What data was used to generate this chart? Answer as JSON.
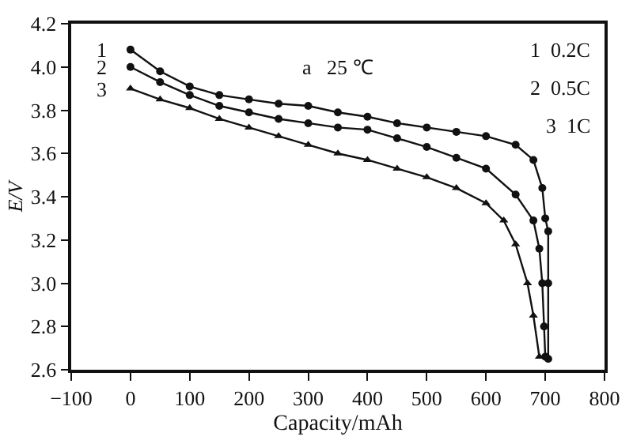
{
  "chart_data": {
    "type": "line",
    "xlabel": "Capacity/mAh",
    "ylabel": "E/V",
    "xlim": [
      -100,
      800
    ],
    "xticks": [
      -100,
      0,
      100,
      200,
      300,
      400,
      500,
      600,
      700,
      800
    ],
    "ylim": [
      2.6,
      4.2
    ],
    "yticks": [
      2.6,
      2.8,
      {
        "value": 3,
        "label": "3.0"
      },
      3.2,
      3.4,
      3.6,
      3.8,
      {
        "value": 4,
        "label": "4.0"
      },
      4.2
    ],
    "grid": false,
    "legend": false,
    "line_style": "solid",
    "series": [
      {
        "name": "1",
        "color": "#111111",
        "marker": "circle",
        "x": [
          0,
          50,
          100,
          150,
          200,
          250,
          300,
          350,
          400,
          450,
          500,
          550,
          600,
          650,
          680,
          695,
          700,
          705,
          705,
          705
        ],
        "values": [
          4.08,
          3.98,
          3.91,
          3.87,
          3.85,
          3.83,
          3.82,
          3.79,
          3.77,
          3.74,
          3.72,
          3.7,
          3.68,
          3.64,
          3.57,
          3.44,
          3.3,
          3.24,
          3.0,
          2.65
        ]
      },
      {
        "name": "2",
        "color": "#111111",
        "marker": "circle",
        "x": [
          0,
          50,
          100,
          150,
          200,
          250,
          300,
          350,
          400,
          450,
          500,
          550,
          600,
          650,
          680,
          690,
          695,
          698,
          700
        ],
        "values": [
          4.0,
          3.93,
          3.87,
          3.82,
          3.79,
          3.76,
          3.74,
          3.72,
          3.71,
          3.67,
          3.63,
          3.58,
          3.53,
          3.41,
          3.29,
          3.16,
          3.0,
          2.8,
          2.66
        ]
      },
      {
        "name": "3",
        "color": "#111111",
        "marker": "triangle",
        "x": [
          0,
          50,
          100,
          150,
          200,
          250,
          300,
          350,
          400,
          450,
          500,
          550,
          600,
          630,
          650,
          670,
          680,
          690
        ],
        "values": [
          3.9,
          3.85,
          3.81,
          3.76,
          3.72,
          3.68,
          3.64,
          3.6,
          3.57,
          3.53,
          3.49,
          3.44,
          3.37,
          3.29,
          3.18,
          3.0,
          2.85,
          2.66
        ]
      }
    ],
    "annotations": [
      "a   25 ℃",
      "1  0.2C",
      "2  0.5C",
      "3  1C"
    ]
  }
}
